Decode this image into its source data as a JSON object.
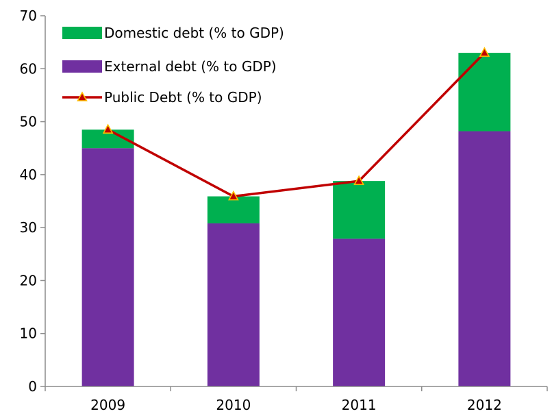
{
  "chart_data": {
    "type": "bar",
    "stacked": true,
    "categories": [
      "2009",
      "2010",
      "2011",
      "2012"
    ],
    "series": [
      {
        "name": "External debt (% to GDP)",
        "type": "bar",
        "color": "#7030a0",
        "values": [
          45.0,
          30.8,
          27.9,
          48.2
        ]
      },
      {
        "name": "Domestic debt (% to GDP)",
        "type": "bar",
        "color": "#00b050",
        "values": [
          3.5,
          5.1,
          10.9,
          14.8
        ]
      },
      {
        "name": "Public Debt (% to GDP)",
        "type": "line",
        "color": "#c00000",
        "marker": "triangle",
        "marker_color": "#ffc000",
        "values": [
          48.5,
          35.9,
          38.8,
          63.0
        ]
      }
    ],
    "legend_order": [
      "Domestic debt (% to GDP)",
      "External debt (% to GDP)",
      "Public Debt (% to GDP)"
    ],
    "legend_position": "top-left",
    "y_ticks": [
      "0",
      "10",
      "20",
      "30",
      "40",
      "50",
      "60",
      "70"
    ],
    "ylim": [
      0,
      70
    ],
    "grid": false,
    "title": "",
    "xlabel": "",
    "ylabel": ""
  }
}
